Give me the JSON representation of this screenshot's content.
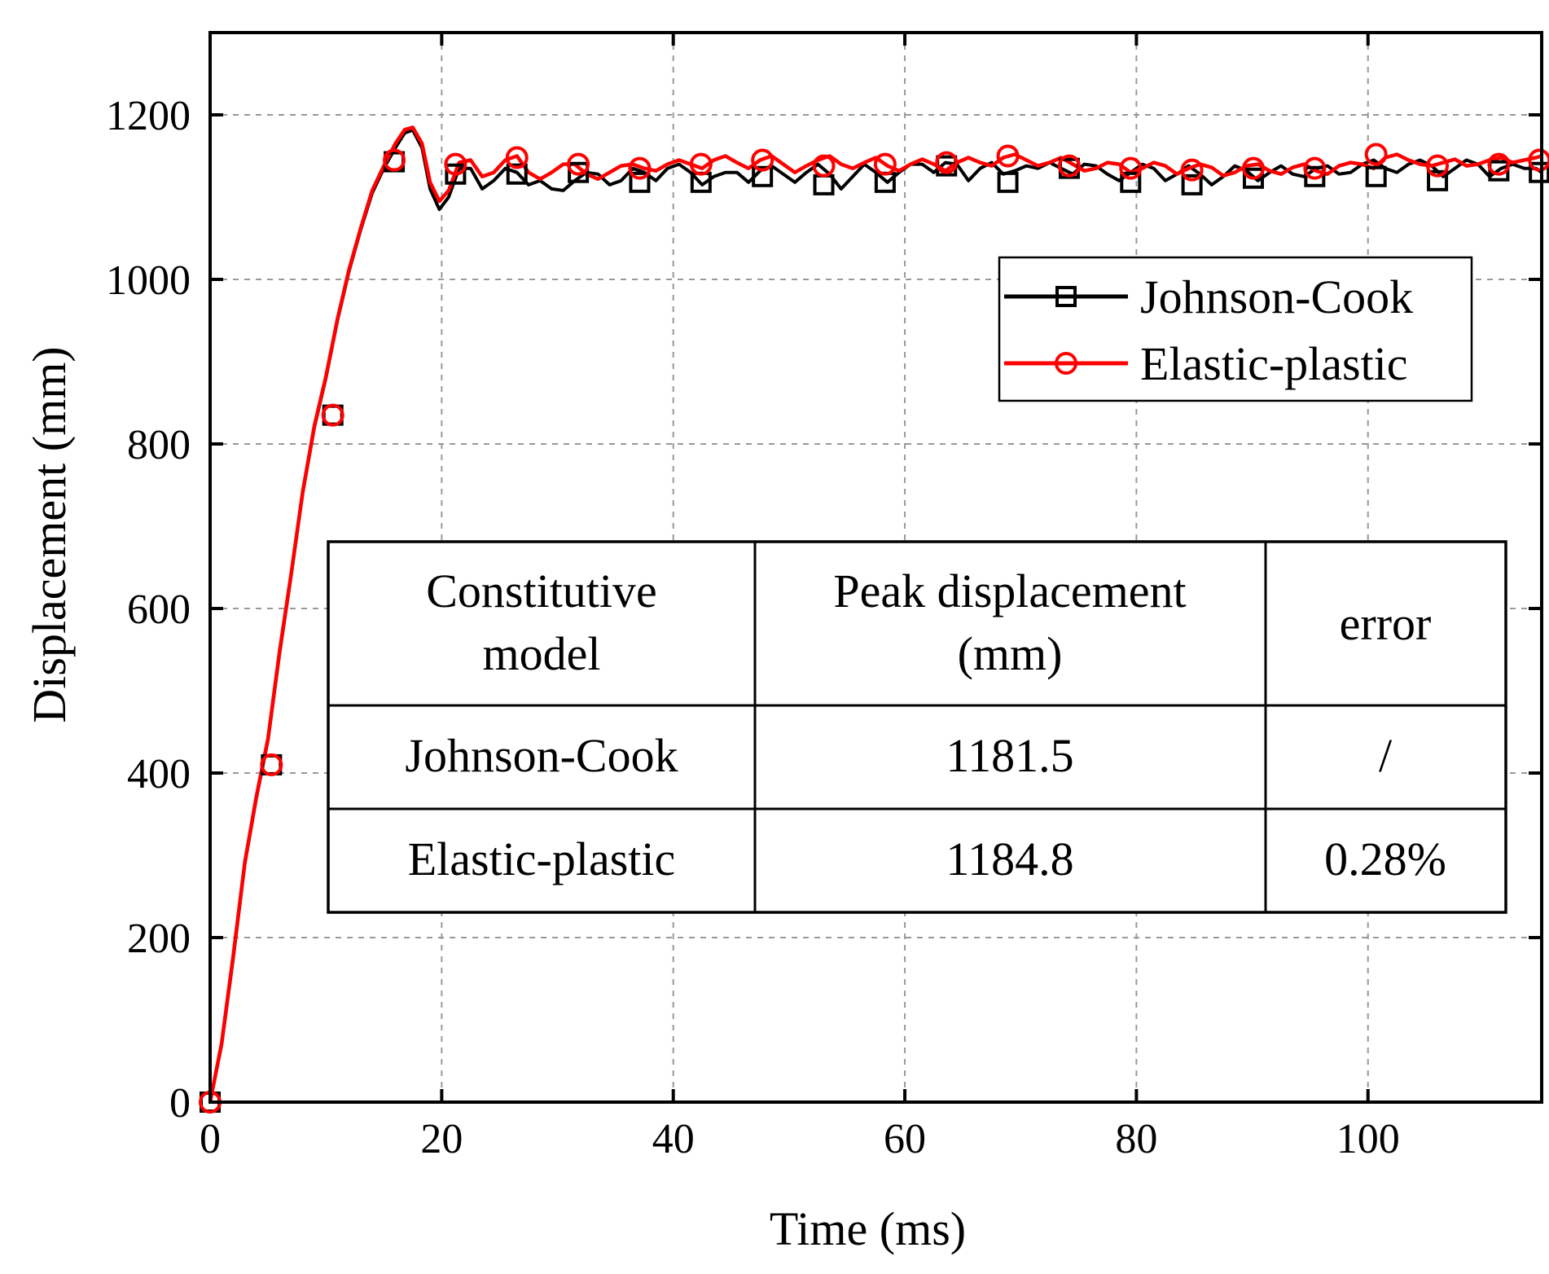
{
  "chart_data": {
    "type": "line",
    "title": "",
    "xlabel": "Time (ms)",
    "ylabel": "Displacement (mm)",
    "xlim": [
      0,
      115
    ],
    "ylim": [
      0,
      1300
    ],
    "xticks": [
      0,
      20,
      40,
      60,
      80,
      100
    ],
    "yticks": [
      0,
      200,
      400,
      600,
      800,
      1000,
      1200
    ],
    "grid": true,
    "legend_position": "top-right",
    "series": [
      {
        "name": "Johnson-Cook",
        "color": "#000000",
        "marker": "square",
        "x": [
          0,
          1,
          2,
          3,
          4,
          5,
          6,
          7,
          8,
          9,
          10,
          11,
          12,
          13,
          14,
          15,
          16,
          16.8,
          17.5,
          18.3,
          19,
          19.8,
          20.6,
          21.5,
          22.5,
          23.5,
          24.5,
          25.5,
          26.5,
          27.5,
          28.5,
          29.5,
          30.5,
          31.5,
          32.5,
          33.5,
          34.5,
          35.5,
          36.5,
          37.5,
          38.5,
          39.5,
          40.5,
          41.5,
          42.5,
          43.5,
          44.5,
          45.5,
          46.5,
          47.5,
          48.5,
          49.5,
          50.5,
          51.5,
          52.5,
          53.5,
          54.5,
          55.5,
          56.5,
          57.5,
          58.5,
          59.5,
          60.5,
          61.5,
          62.5,
          63.5,
          64.5,
          65.5,
          66.5,
          67.5,
          68.5,
          69.5,
          70.5,
          71.5,
          72.5,
          73.5,
          74.5,
          75.5,
          76.5,
          77.5,
          78.5,
          79.5,
          80.5,
          81.5,
          82.5,
          83.5,
          84.5,
          85.5,
          86.5,
          87.5,
          88.5,
          89.5,
          90.5,
          91.5,
          92.5,
          93.5,
          94.5,
          95.5,
          96.5,
          97.5,
          98.5,
          99.5,
          100.5,
          101.5,
          102.5,
          103.5,
          104.5,
          105.5,
          106.5,
          107.5,
          108.5,
          109.5,
          110.5,
          111.5,
          112.5,
          113.5,
          114.5,
          115
        ],
        "y": [
          0,
          70,
          175,
          290,
          370,
          440,
          545,
          640,
          740,
          820,
          880,
          950,
          1010,
          1060,
          1105,
          1135,
          1160,
          1178,
          1181.5,
          1160,
          1110,
          1085,
          1100,
          1135,
          1135,
          1110,
          1120,
          1135,
          1130,
          1115,
          1120,
          1110,
          1108,
          1120,
          1130,
          1128,
          1115,
          1120,
          1135,
          1130,
          1120,
          1135,
          1140,
          1130,
          1115,
          1125,
          1130,
          1130,
          1118,
          1132,
          1138,
          1128,
          1118,
          1130,
          1140,
          1128,
          1110,
          1125,
          1140,
          1130,
          1118,
          1130,
          1140,
          1140,
          1130,
          1142,
          1140,
          1120,
          1135,
          1142,
          1128,
          1132,
          1138,
          1135,
          1142,
          1135,
          1128,
          1140,
          1138,
          1128,
          1120,
          1130,
          1140,
          1135,
          1120,
          1128,
          1138,
          1128,
          1115,
          1125,
          1138,
          1132,
          1120,
          1130,
          1138,
          1128,
          1125,
          1135,
          1138,
          1128,
          1130,
          1140,
          1145,
          1135,
          1130,
          1140,
          1145,
          1138,
          1125,
          1135,
          1145,
          1140,
          1125,
          1135,
          1140,
          1135,
          1135,
          1130
        ]
      },
      {
        "name": "Elastic-plastic",
        "color": "#ff0000",
        "marker": "circle",
        "x": [
          0,
          1,
          2,
          3,
          4,
          5,
          6,
          7,
          8,
          9,
          10,
          11,
          12,
          13,
          14,
          15,
          16,
          16.8,
          17.5,
          18.3,
          19,
          19.8,
          20.6,
          21.5,
          22.5,
          23.5,
          24.5,
          25.5,
          26.5,
          27.5,
          28.5,
          29.5,
          30.5,
          31.5,
          32.5,
          33.5,
          34.5,
          35.5,
          36.5,
          37.5,
          38.5,
          39.5,
          40.5,
          41.5,
          42.5,
          43.5,
          44.5,
          45.5,
          46.5,
          47.5,
          48.5,
          49.5,
          50.5,
          51.5,
          52.5,
          53.5,
          54.5,
          55.5,
          56.5,
          57.5,
          58.5,
          59.5,
          60.5,
          61.5,
          62.5,
          63.5,
          64.5,
          65.5,
          66.5,
          67.5,
          68.5,
          69.5,
          70.5,
          71.5,
          72.5,
          73.5,
          74.5,
          75.5,
          76.5,
          77.5,
          78.5,
          79.5,
          80.5,
          81.5,
          82.5,
          83.5,
          84.5,
          85.5,
          86.5,
          87.5,
          88.5,
          89.5,
          90.5,
          91.5,
          92.5,
          93.5,
          94.5,
          95.5,
          96.5,
          97.5,
          98.5,
          99.5,
          100.5,
          101.5,
          102.5,
          103.5,
          104.5,
          105.5,
          106.5,
          107.5,
          108.5,
          109.5,
          110.5,
          111.5,
          112.5,
          113.5,
          114.5,
          115
        ],
        "y": [
          0,
          72,
          178,
          292,
          372,
          442,
          548,
          642,
          742,
          822,
          882,
          952,
          1012,
          1062,
          1108,
          1138,
          1165,
          1182,
          1184.8,
          1165,
          1118,
          1095,
          1108,
          1142,
          1145,
          1125,
          1130,
          1145,
          1150,
          1130,
          1122,
          1130,
          1140,
          1140,
          1128,
          1122,
          1130,
          1138,
          1140,
          1135,
          1132,
          1140,
          1145,
          1140,
          1135,
          1145,
          1150,
          1142,
          1135,
          1145,
          1150,
          1140,
          1130,
          1138,
          1145,
          1150,
          1140,
          1135,
          1142,
          1148,
          1138,
          1132,
          1140,
          1146,
          1140,
          1132,
          1142,
          1148,
          1142,
          1138,
          1148,
          1152,
          1145,
          1138,
          1142,
          1148,
          1140,
          1132,
          1135,
          1142,
          1140,
          1130,
          1135,
          1142,
          1138,
          1128,
          1135,
          1140,
          1136,
          1126,
          1130,
          1138,
          1140,
          1132,
          1128,
          1136,
          1140,
          1132,
          1128,
          1138,
          1142,
          1140,
          1135,
          1148,
          1152,
          1145,
          1140,
          1138,
          1142,
          1146,
          1138,
          1140,
          1145,
          1148,
          1142,
          1145,
          1148,
          1150
        ]
      }
    ],
    "markers": {
      "Johnson-Cook": {
        "x": [
          0,
          5.3,
          10.6,
          15.9,
          21.2,
          26.5,
          31.8,
          37.1,
          42.4,
          47.7,
          53.0,
          58.3,
          63.6,
          68.9,
          74.2,
          79.5,
          84.8,
          90.1,
          95.4,
          100.7,
          106.0,
          111.3,
          114.8
        ],
        "y": [
          0,
          410,
          835,
          1143,
          1128,
          1128,
          1130,
          1118,
          1118,
          1125,
          1115,
          1118,
          1138,
          1118,
          1135,
          1118,
          1115,
          1123,
          1125,
          1125,
          1120,
          1132,
          1130
        ]
      },
      "Elastic-plastic": {
        "x": [
          0,
          5.3,
          10.6,
          15.9,
          21.2,
          26.5,
          31.8,
          37.1,
          42.4,
          47.7,
          53.0,
          58.3,
          63.6,
          68.9,
          74.2,
          79.5,
          84.8,
          90.1,
          95.4,
          100.7,
          106.0,
          111.3,
          114.8
        ],
        "y": [
          0,
          410,
          835,
          1145,
          1140,
          1148,
          1140,
          1135,
          1140,
          1145,
          1138,
          1140,
          1142,
          1150,
          1138,
          1135,
          1133,
          1135,
          1135,
          1152,
          1138,
          1140,
          1145
        ]
      }
    },
    "table": {
      "headers": [
        {
          "line1": "Constitutive",
          "line2": "model"
        },
        {
          "line1": "Peak displacement",
          "line2": "(mm)"
        },
        {
          "line1": "error",
          "line2": ""
        }
      ],
      "rows": [
        [
          "Johnson-Cook",
          "1181.5",
          "/"
        ],
        [
          "Elastic-plastic",
          "1184.8",
          "0.28%"
        ]
      ]
    }
  }
}
